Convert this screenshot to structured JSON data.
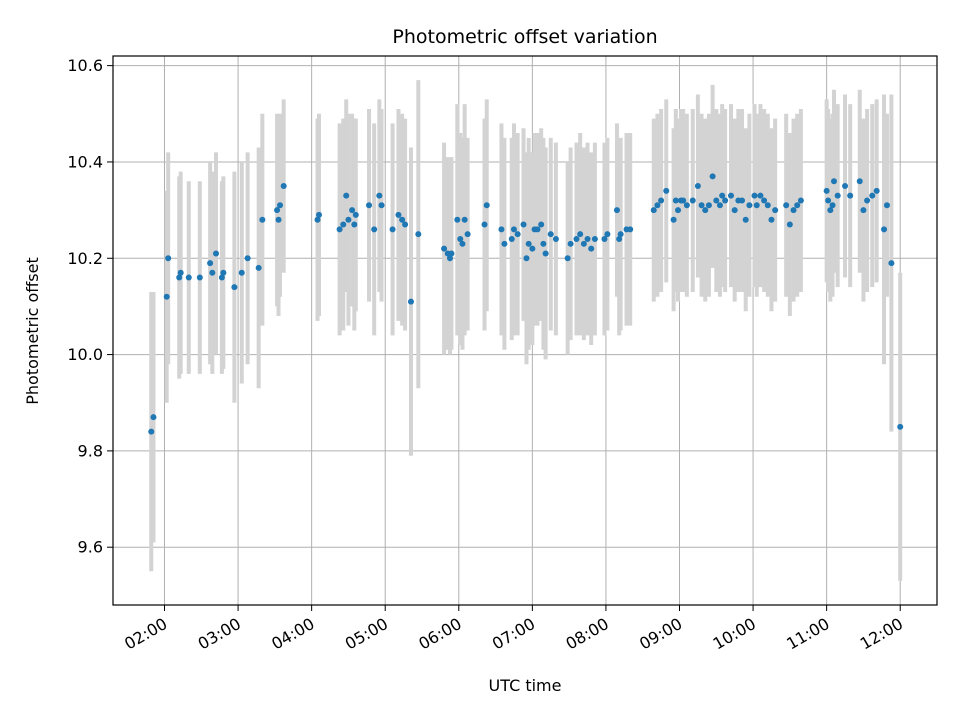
{
  "chart_data": {
    "type": "scatter",
    "title": "Photometric offset variation",
    "xlabel": "UTC time",
    "ylabel": "Photometric offset",
    "x_unit": "UTC hour (hh:mm)",
    "xlim": [
      1.3,
      12.5
    ],
    "ylim": [
      9.48,
      10.62
    ],
    "x_ticks": [
      2,
      3,
      4,
      5,
      6,
      7,
      8,
      9,
      10,
      11,
      12
    ],
    "x_tick_labels": [
      "02:00",
      "03:00",
      "04:00",
      "05:00",
      "06:00",
      "07:00",
      "08:00",
      "09:00",
      "10:00",
      "11:00",
      "12:00"
    ],
    "y_ticks": [
      9.6,
      9.8,
      10.0,
      10.2,
      10.4,
      10.6
    ],
    "y_tick_labels": [
      "9.6",
      "9.8",
      "10.0",
      "10.2",
      "10.4",
      "10.6"
    ],
    "grid": true,
    "colors": {
      "points": "#1f77b4",
      "errorbars": "#d3d3d3",
      "grid": "#b0b0b0"
    },
    "series": [
      {
        "columns": [
          "utc_hour",
          "offset",
          "error"
        ],
        "points": [
          [
            1.82,
            9.84,
            0.29
          ],
          [
            1.85,
            9.87,
            0.26
          ],
          [
            2.03,
            10.12,
            0.22
          ],
          [
            2.05,
            10.2,
            0.22
          ],
          [
            2.2,
            10.16,
            0.21
          ],
          [
            2.22,
            10.17,
            0.21
          ],
          [
            2.33,
            10.16,
            0.2
          ],
          [
            2.48,
            10.16,
            0.2
          ],
          [
            2.62,
            10.19,
            0.21
          ],
          [
            2.65,
            10.17,
            0.21
          ],
          [
            2.7,
            10.21,
            0.21
          ],
          [
            2.78,
            10.16,
            0.2
          ],
          [
            2.8,
            10.17,
            0.2
          ],
          [
            2.95,
            10.14,
            0.24
          ],
          [
            3.05,
            10.17,
            0.23
          ],
          [
            3.13,
            10.2,
            0.22
          ],
          [
            3.28,
            10.18,
            0.25
          ],
          [
            3.33,
            10.28,
            0.22
          ],
          [
            3.53,
            10.3,
            0.2
          ],
          [
            3.55,
            10.28,
            0.2
          ],
          [
            3.57,
            10.31,
            0.19
          ],
          [
            3.62,
            10.35,
            0.18
          ],
          [
            4.08,
            10.28,
            0.21
          ],
          [
            4.1,
            10.29,
            0.21
          ],
          [
            4.38,
            10.26,
            0.22
          ],
          [
            4.43,
            10.27,
            0.22
          ],
          [
            4.47,
            10.33,
            0.2
          ],
          [
            4.5,
            10.28,
            0.22
          ],
          [
            4.55,
            10.3,
            0.2
          ],
          [
            4.58,
            10.27,
            0.22
          ],
          [
            4.6,
            10.29,
            0.2
          ],
          [
            4.78,
            10.31,
            0.2
          ],
          [
            4.85,
            10.26,
            0.22
          ],
          [
            4.92,
            10.33,
            0.2
          ],
          [
            4.95,
            10.31,
            0.2
          ],
          [
            5.1,
            10.26,
            0.22
          ],
          [
            5.18,
            10.29,
            0.22
          ],
          [
            5.23,
            10.28,
            0.22
          ],
          [
            5.27,
            10.27,
            0.22
          ],
          [
            5.35,
            10.11,
            0.32
          ],
          [
            5.45,
            10.25,
            0.32
          ],
          [
            5.8,
            10.22,
            0.22
          ],
          [
            5.85,
            10.21,
            0.2
          ],
          [
            5.88,
            10.2,
            0.2
          ],
          [
            5.9,
            10.21,
            0.2
          ],
          [
            5.98,
            10.28,
            0.24
          ],
          [
            6.02,
            10.24,
            0.22
          ],
          [
            6.05,
            10.23,
            0.22
          ],
          [
            6.08,
            10.28,
            0.24
          ],
          [
            6.12,
            10.25,
            0.2
          ],
          [
            6.35,
            10.27,
            0.22
          ],
          [
            6.38,
            10.31,
            0.22
          ],
          [
            6.58,
            10.26,
            0.22
          ],
          [
            6.62,
            10.23,
            0.22
          ],
          [
            6.72,
            10.24,
            0.21
          ],
          [
            6.75,
            10.26,
            0.22
          ],
          [
            6.8,
            10.25,
            0.21
          ],
          [
            6.88,
            10.27,
            0.2
          ],
          [
            6.92,
            10.2,
            0.22
          ],
          [
            6.95,
            10.23,
            0.22
          ],
          [
            7.0,
            10.22,
            0.2
          ],
          [
            7.03,
            10.26,
            0.2
          ],
          [
            7.07,
            10.26,
            0.2
          ],
          [
            7.12,
            10.27,
            0.2
          ],
          [
            7.15,
            10.23,
            0.22
          ],
          [
            7.18,
            10.21,
            0.22
          ],
          [
            7.25,
            10.25,
            0.2
          ],
          [
            7.32,
            10.24,
            0.2
          ],
          [
            7.48,
            10.2,
            0.2
          ],
          [
            7.52,
            10.23,
            0.2
          ],
          [
            7.6,
            10.24,
            0.2
          ],
          [
            7.65,
            10.25,
            0.21
          ],
          [
            7.7,
            10.23,
            0.2
          ],
          [
            7.75,
            10.24,
            0.2
          ],
          [
            7.8,
            10.22,
            0.2
          ],
          [
            7.85,
            10.24,
            0.2
          ],
          [
            7.98,
            10.24,
            0.2
          ],
          [
            8.02,
            10.25,
            0.2
          ],
          [
            8.15,
            10.3,
            0.18
          ],
          [
            8.18,
            10.24,
            0.2
          ],
          [
            8.2,
            10.25,
            0.2
          ],
          [
            8.28,
            10.26,
            0.2
          ],
          [
            8.33,
            10.26,
            0.2
          ],
          [
            8.65,
            10.3,
            0.19
          ],
          [
            8.7,
            10.31,
            0.19
          ],
          [
            8.75,
            10.32,
            0.19
          ],
          [
            8.82,
            10.34,
            0.19
          ],
          [
            8.92,
            10.28,
            0.19
          ],
          [
            8.95,
            10.32,
            0.19
          ],
          [
            8.98,
            10.3,
            0.19
          ],
          [
            9.02,
            10.32,
            0.19
          ],
          [
            9.05,
            10.32,
            0.19
          ],
          [
            9.1,
            10.31,
            0.19
          ],
          [
            9.18,
            10.32,
            0.19
          ],
          [
            9.25,
            10.35,
            0.19
          ],
          [
            9.3,
            10.31,
            0.19
          ],
          [
            9.35,
            10.3,
            0.19
          ],
          [
            9.4,
            10.31,
            0.19
          ],
          [
            9.45,
            10.37,
            0.19
          ],
          [
            9.5,
            10.32,
            0.19
          ],
          [
            9.55,
            10.31,
            0.19
          ],
          [
            9.58,
            10.33,
            0.19
          ],
          [
            9.62,
            10.32,
            0.19
          ],
          [
            9.7,
            10.33,
            0.19
          ],
          [
            9.75,
            10.3,
            0.19
          ],
          [
            9.8,
            10.32,
            0.19
          ],
          [
            9.85,
            10.32,
            0.19
          ],
          [
            9.9,
            10.28,
            0.19
          ],
          [
            9.95,
            10.31,
            0.19
          ],
          [
            10.02,
            10.33,
            0.19
          ],
          [
            10.05,
            10.31,
            0.19
          ],
          [
            10.1,
            10.33,
            0.19
          ],
          [
            10.15,
            10.32,
            0.19
          ],
          [
            10.2,
            10.31,
            0.19
          ],
          [
            10.25,
            10.28,
            0.19
          ],
          [
            10.3,
            10.3,
            0.19
          ],
          [
            10.45,
            10.31,
            0.19
          ],
          [
            10.5,
            10.27,
            0.19
          ],
          [
            10.55,
            10.3,
            0.19
          ],
          [
            10.6,
            10.31,
            0.19
          ],
          [
            10.65,
            10.32,
            0.19
          ],
          [
            11.0,
            10.34,
            0.19
          ],
          [
            11.02,
            10.32,
            0.19
          ],
          [
            11.05,
            10.3,
            0.19
          ],
          [
            11.08,
            10.31,
            0.19
          ],
          [
            11.1,
            10.36,
            0.19
          ],
          [
            11.15,
            10.33,
            0.19
          ],
          [
            11.25,
            10.35,
            0.19
          ],
          [
            11.32,
            10.33,
            0.19
          ],
          [
            11.45,
            10.36,
            0.19
          ],
          [
            11.5,
            10.3,
            0.19
          ],
          [
            11.55,
            10.32,
            0.19
          ],
          [
            11.62,
            10.33,
            0.19
          ],
          [
            11.68,
            10.34,
            0.19
          ],
          [
            11.78,
            10.26,
            0.28
          ],
          [
            11.82,
            10.31,
            0.19
          ],
          [
            11.88,
            10.19,
            0.35
          ],
          [
            12.0,
            9.85,
            0.32
          ]
        ]
      }
    ]
  }
}
